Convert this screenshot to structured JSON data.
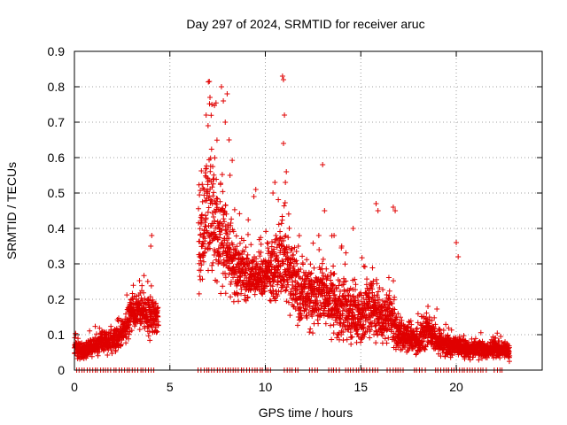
{
  "chart_data": {
    "type": "scatter",
    "title": "Day 297 of 2024, SRMTID for receiver aruc",
    "xlabel": "GPS time / hours",
    "ylabel": "SRMTID / TECUs",
    "xlim": [
      0,
      24.5
    ],
    "ylim": [
      0,
      0.9
    ],
    "x_ticks": [
      0,
      5,
      10,
      15,
      20
    ],
    "x_tick_labels": [
      "0",
      "5",
      "10",
      "15",
      "20"
    ],
    "y_ticks": [
      0,
      0.1,
      0.2,
      0.3,
      0.4,
      0.5,
      0.6,
      0.7,
      0.8,
      0.9
    ],
    "y_tick_labels": [
      "0",
      "0.1",
      "0.2",
      "0.3",
      "0.4",
      "0.5",
      "0.6",
      "0.7",
      "0.8",
      "0.9"
    ],
    "grid": true,
    "marker": "+",
    "marker_color": "#e00000",
    "envelope": [
      [
        0.0,
        0.06,
        0.02
      ],
      [
        0.5,
        0.05,
        0.02
      ],
      [
        1.0,
        0.07,
        0.02
      ],
      [
        1.5,
        0.08,
        0.025
      ],
      [
        2.0,
        0.08,
        0.03
      ],
      [
        2.5,
        0.1,
        0.03
      ],
      [
        3.0,
        0.16,
        0.04
      ],
      [
        3.5,
        0.17,
        0.04
      ],
      [
        4.0,
        0.15,
        0.05
      ],
      [
        4.3,
        0.14,
        0.04
      ],
      [
        6.6,
        0.35,
        0.12
      ],
      [
        7.0,
        0.45,
        0.15
      ],
      [
        7.5,
        0.4,
        0.13
      ],
      [
        8.0,
        0.35,
        0.1
      ],
      [
        8.5,
        0.28,
        0.07
      ],
      [
        9.0,
        0.27,
        0.06
      ],
      [
        9.5,
        0.26,
        0.05
      ],
      [
        10.0,
        0.27,
        0.06
      ],
      [
        10.5,
        0.3,
        0.08
      ],
      [
        11.0,
        0.3,
        0.09
      ],
      [
        11.5,
        0.25,
        0.08
      ],
      [
        12.0,
        0.22,
        0.07
      ],
      [
        12.5,
        0.2,
        0.07
      ],
      [
        13.0,
        0.22,
        0.07
      ],
      [
        13.5,
        0.2,
        0.08
      ],
      [
        14.0,
        0.17,
        0.07
      ],
      [
        14.5,
        0.16,
        0.07
      ],
      [
        15.0,
        0.15,
        0.06
      ],
      [
        15.5,
        0.18,
        0.07
      ],
      [
        16.0,
        0.15,
        0.06
      ],
      [
        16.5,
        0.16,
        0.06
      ],
      [
        17.0,
        0.1,
        0.04
      ],
      [
        17.5,
        0.09,
        0.03
      ],
      [
        18.0,
        0.08,
        0.03
      ],
      [
        18.5,
        0.12,
        0.04
      ],
      [
        19.0,
        0.08,
        0.03
      ],
      [
        19.5,
        0.07,
        0.025
      ],
      [
        20.0,
        0.07,
        0.025
      ],
      [
        20.5,
        0.06,
        0.02
      ],
      [
        21.0,
        0.06,
        0.02
      ],
      [
        21.5,
        0.06,
        0.02
      ],
      [
        22.0,
        0.06,
        0.02
      ],
      [
        22.5,
        0.055,
        0.02
      ],
      [
        22.8,
        0.05,
        0.02
      ]
    ],
    "gaps": [
      [
        4.4,
        6.5
      ]
    ],
    "spikes": [
      [
        4.05,
        0.38
      ],
      [
        4.0,
        0.35
      ],
      [
        6.9,
        0.72
      ],
      [
        7.0,
        0.69
      ],
      [
        7.1,
        0.77
      ],
      [
        7.2,
        0.75
      ],
      [
        7.3,
        0.54
      ],
      [
        7.7,
        0.8
      ],
      [
        7.8,
        0.76
      ],
      [
        7.9,
        0.7
      ],
      [
        8.0,
        0.78
      ],
      [
        8.1,
        0.65
      ],
      [
        8.15,
        0.55
      ],
      [
        9.5,
        0.51
      ],
      [
        9.4,
        0.49
      ],
      [
        10.5,
        0.53
      ],
      [
        10.4,
        0.5
      ],
      [
        10.9,
        0.83
      ],
      [
        10.95,
        0.82
      ],
      [
        11.0,
        0.72
      ],
      [
        10.95,
        0.64
      ],
      [
        11.1,
        0.56
      ],
      [
        11.05,
        0.53
      ],
      [
        13.0,
        0.58
      ],
      [
        13.1,
        0.45
      ],
      [
        14.6,
        0.4
      ],
      [
        15.8,
        0.47
      ],
      [
        15.9,
        0.45
      ],
      [
        16.7,
        0.46
      ],
      [
        16.8,
        0.45
      ],
      [
        20.0,
        0.36
      ],
      [
        20.1,
        0.32
      ],
      [
        12.8,
        0.38
      ],
      [
        13.6,
        0.38
      ],
      [
        14.0,
        0.35
      ]
    ],
    "baseline_zero": [
      [
        0.1,
        4.3
      ],
      [
        6.5,
        10.3
      ],
      [
        11.0,
        11.8
      ],
      [
        12.3,
        12.8
      ],
      [
        13.3,
        13.9
      ],
      [
        14.2,
        15.9
      ],
      [
        16.4,
        17.3
      ],
      [
        17.8,
        18.4
      ],
      [
        18.9,
        21.6
      ],
      [
        22.0,
        22.5
      ]
    ]
  }
}
